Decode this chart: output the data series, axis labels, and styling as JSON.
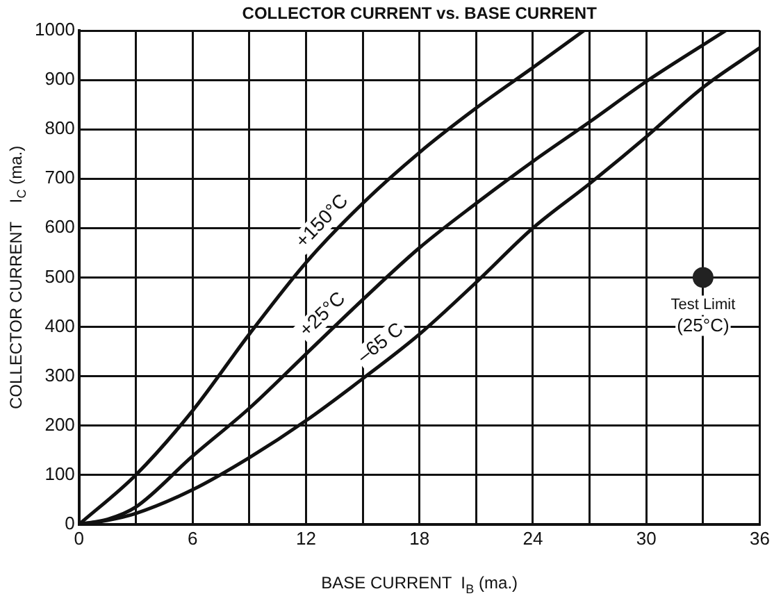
{
  "chart_data": {
    "type": "line",
    "title": "COLLECTOR CURRENT vs. BASE CURRENT",
    "xlabel": "BASE CURRENT  I$_{B}$ (ma.)",
    "ylabel": "COLLECTOR CURRENT    I$_{C}$ (ma.)",
    "xlim": [
      0,
      36
    ],
    "xticks": [
      0,
      {
        "value": 3,
        "label": null
      },
      6,
      {
        "value": 9,
        "label": null
      },
      12,
      {
        "value": 15,
        "label": null
      },
      18,
      {
        "value": 21,
        "label": null
      },
      24,
      {
        "value": 27,
        "label": null
      },
      30,
      {
        "value": 33,
        "label": null
      },
      36
    ],
    "ylim": [
      0,
      1000
    ],
    "yticks": [
      0,
      100,
      200,
      300,
      400,
      500,
      600,
      700,
      800,
      900,
      1000
    ],
    "grid": true,
    "legend": false,
    "marker": "none",
    "line_style": "solid",
    "series": [
      {
        "name": "+150°C",
        "color": "#111111",
        "x": [
          0,
          3,
          6,
          9,
          12,
          15,
          18,
          21,
          24,
          26.7
        ],
        "values": [
          0,
          100,
          230,
          385,
          530,
          650,
          753,
          843,
          925,
          1000
        ]
      },
      {
        "name": "+25°C",
        "color": "#111111",
        "x": [
          0,
          1.5,
          3,
          6,
          9,
          12,
          15,
          18,
          21,
          24,
          27,
          30,
          34.2
        ],
        "values": [
          0,
          10,
          35,
          138,
          235,
          345,
          455,
          560,
          650,
          735,
          815,
          897,
          1000
        ]
      },
      {
        "name": "–65 C",
        "color": "#111111",
        "x": [
          0,
          1.5,
          3,
          6,
          9,
          12,
          15,
          18,
          21,
          24,
          27,
          30,
          33,
          36
        ],
        "values": [
          0,
          8,
          22,
          70,
          135,
          210,
          295,
          385,
          490,
          600,
          690,
          785,
          885,
          965
        ]
      },
      {
        "type": "scatter",
        "color": "#222222",
        "marker": "circle",
        "x": [
          33
        ],
        "values": [
          500
        ]
      }
    ],
    "annotations": [
      {
        "text": "Test Limit\n(25°C)",
        "x": 33,
        "y": 500
      }
    ]
  }
}
